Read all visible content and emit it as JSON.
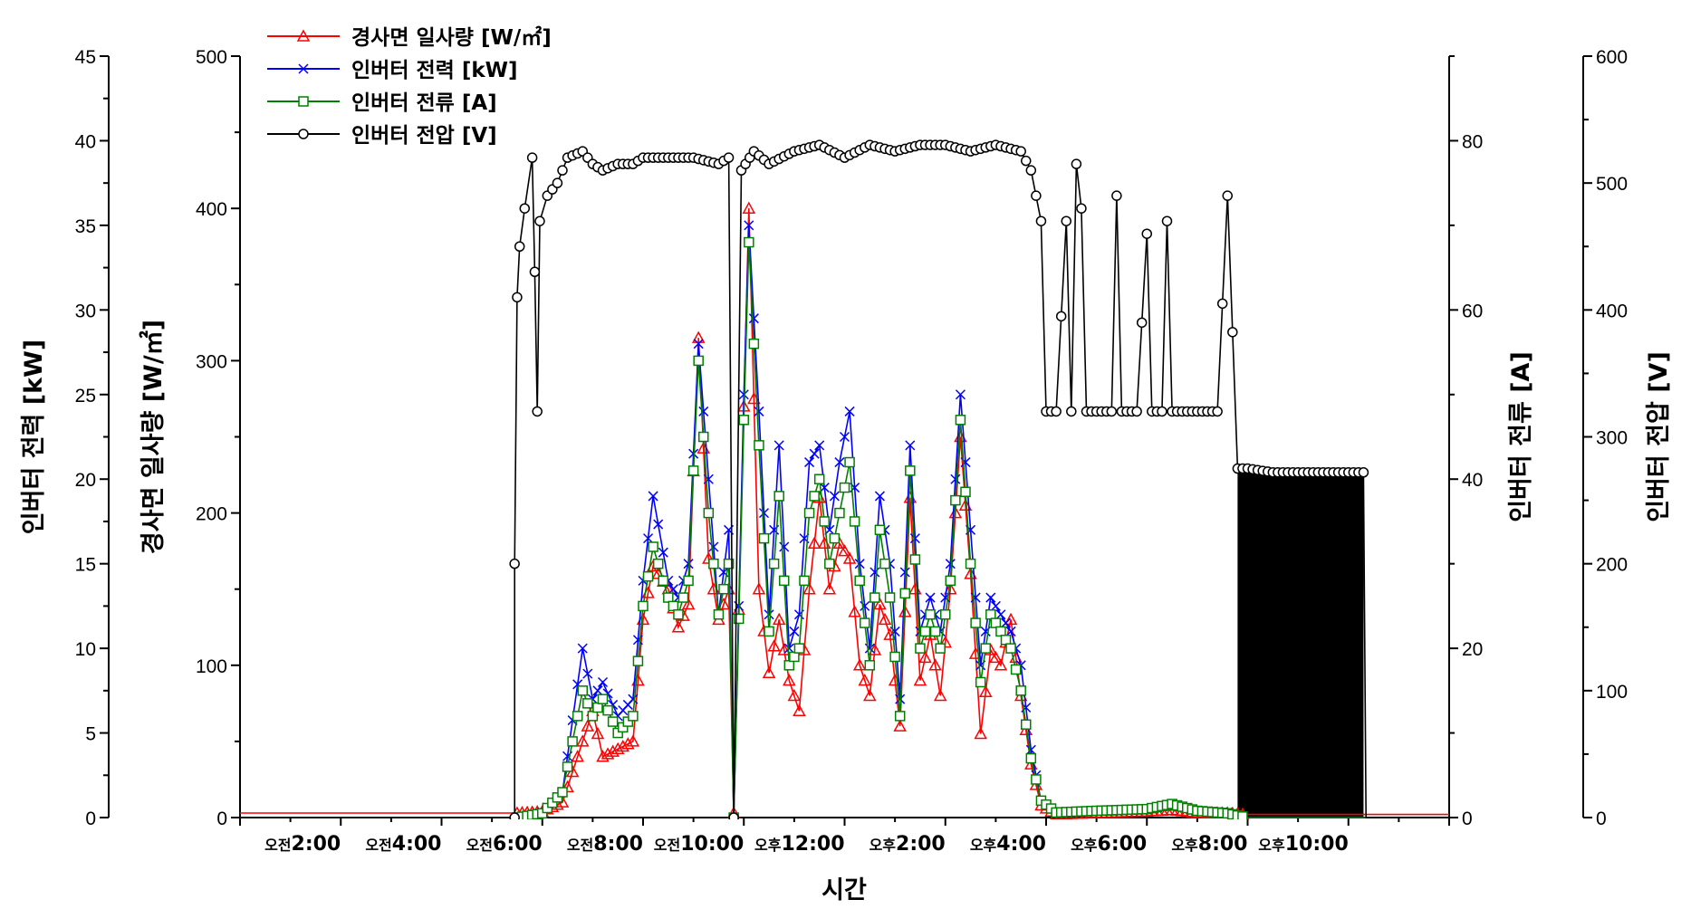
{
  "chart_data": {
    "type": "line",
    "title": "",
    "xlabel": "시간",
    "x_range_hours": [
      0,
      24
    ],
    "x_ticks": [
      {
        "hour": 2,
        "prefix": "오전",
        "time": "2:00"
      },
      {
        "hour": 4,
        "prefix": "오전",
        "time": "4:00"
      },
      {
        "hour": 6,
        "prefix": "오전",
        "time": "6:00"
      },
      {
        "hour": 8,
        "prefix": "오전",
        "time": "8:00"
      },
      {
        "hour": 10,
        "prefix": "오전",
        "time": "10:00"
      },
      {
        "hour": 12,
        "prefix": "오후",
        "time": "12:00"
      },
      {
        "hour": 14,
        "prefix": "오후",
        "time": "2:00"
      },
      {
        "hour": 16,
        "prefix": "오후",
        "time": "4:00"
      },
      {
        "hour": 18,
        "prefix": "오후",
        "time": "6:00"
      },
      {
        "hour": 20,
        "prefix": "오후",
        "time": "8:00"
      },
      {
        "hour": 22,
        "prefix": "오후",
        "time": "10:00"
      }
    ],
    "axes": {
      "power": {
        "label": "인버터 전력 [kW]",
        "range": [
          0,
          45
        ],
        "ticks": [
          0,
          5,
          10,
          15,
          20,
          25,
          30,
          35,
          40,
          45
        ]
      },
      "irradiance": {
        "label": "경사면 일사량 [W/㎡]",
        "range": [
          0,
          500
        ],
        "ticks": [
          0,
          100,
          200,
          300,
          400,
          500
        ]
      },
      "current": {
        "label": "인버터 전류 [A]",
        "range": [
          0,
          90
        ],
        "ticks": [
          0,
          20,
          40,
          60,
          80
        ]
      },
      "voltage": {
        "label": "인버터 전압 [V]",
        "range": [
          0,
          600
        ],
        "ticks": [
          0,
          100,
          200,
          300,
          400,
          500,
          600
        ]
      }
    },
    "legend_position": "top-left",
    "series": [
      {
        "name": "경사면 일사량 [W/㎡]",
        "axis": "irradiance",
        "color": "#ff0000",
        "marker": "triangle",
        "points": [
          [
            0,
            3
          ],
          [
            5.5,
            3
          ],
          [
            6.0,
            4
          ],
          [
            6.4,
            10
          ],
          [
            6.8,
            50
          ],
          [
            7.0,
            70
          ],
          [
            7.2,
            40
          ],
          [
            7.5,
            45
          ],
          [
            7.8,
            50
          ],
          [
            8.0,
            130
          ],
          [
            8.2,
            165
          ],
          [
            8.5,
            150
          ],
          [
            8.7,
            125
          ],
          [
            8.9,
            140
          ],
          [
            9.1,
            315
          ],
          [
            9.3,
            170
          ],
          [
            9.5,
            130
          ],
          [
            9.7,
            150
          ],
          [
            9.8,
            3
          ],
          [
            10.0,
            270
          ],
          [
            10.1,
            400
          ],
          [
            10.3,
            150
          ],
          [
            10.5,
            95
          ],
          [
            10.7,
            130
          ],
          [
            10.9,
            90
          ],
          [
            11.1,
            70
          ],
          [
            11.3,
            150
          ],
          [
            11.5,
            210
          ],
          [
            11.7,
            150
          ],
          [
            11.9,
            180
          ],
          [
            12.1,
            170
          ],
          [
            12.3,
            100
          ],
          [
            12.5,
            80
          ],
          [
            12.7,
            140
          ],
          [
            12.9,
            120
          ],
          [
            13.1,
            60
          ],
          [
            13.3,
            210
          ],
          [
            13.5,
            90
          ],
          [
            13.7,
            120
          ],
          [
            13.9,
            80
          ],
          [
            14.1,
            150
          ],
          [
            14.3,
            250
          ],
          [
            14.5,
            160
          ],
          [
            14.7,
            55
          ],
          [
            14.9,
            110
          ],
          [
            15.1,
            100
          ],
          [
            15.3,
            130
          ],
          [
            15.5,
            80
          ],
          [
            15.7,
            35
          ],
          [
            15.9,
            8
          ],
          [
            16.2,
            2
          ],
          [
            17.0,
            3
          ],
          [
            18.0,
            4
          ],
          [
            18.5,
            5
          ],
          [
            19.0,
            3
          ],
          [
            19.6,
            3
          ],
          [
            20.0,
            2
          ],
          [
            24,
            2
          ]
        ]
      },
      {
        "name": "인버터 전력 [kW]",
        "axis": "power",
        "color": "#0000ff",
        "marker": "x",
        "points": [
          [
            0,
            0
          ],
          [
            5.5,
            0
          ],
          [
            6.0,
            0.3
          ],
          [
            6.4,
            1.5
          ],
          [
            6.8,
            10
          ],
          [
            7.0,
            7
          ],
          [
            7.2,
            8
          ],
          [
            7.5,
            6
          ],
          [
            7.8,
            7
          ],
          [
            8.0,
            14
          ],
          [
            8.2,
            19
          ],
          [
            8.5,
            14
          ],
          [
            8.7,
            13
          ],
          [
            8.9,
            15
          ],
          [
            9.1,
            28
          ],
          [
            9.3,
            20
          ],
          [
            9.5,
            12
          ],
          [
            9.7,
            17
          ],
          [
            9.8,
            0
          ],
          [
            10.0,
            25
          ],
          [
            10.1,
            35
          ],
          [
            10.3,
            24
          ],
          [
            10.5,
            12
          ],
          [
            10.7,
            22
          ],
          [
            10.9,
            10
          ],
          [
            11.1,
            12
          ],
          [
            11.3,
            21
          ],
          [
            11.5,
            22
          ],
          [
            11.7,
            17
          ],
          [
            11.9,
            21
          ],
          [
            12.1,
            24
          ],
          [
            12.3,
            15
          ],
          [
            12.5,
            10
          ],
          [
            12.7,
            19
          ],
          [
            12.9,
            15
          ],
          [
            13.1,
            7
          ],
          [
            13.3,
            22
          ],
          [
            13.5,
            11
          ],
          [
            13.7,
            13
          ],
          [
            13.9,
            11
          ],
          [
            14.1,
            15
          ],
          [
            14.3,
            25
          ],
          [
            14.5,
            17
          ],
          [
            14.7,
            9
          ],
          [
            14.9,
            13
          ],
          [
            15.1,
            12
          ],
          [
            15.3,
            11
          ],
          [
            15.5,
            9
          ],
          [
            15.7,
            4
          ],
          [
            15.9,
            1
          ],
          [
            16.2,
            0.3
          ],
          [
            17.0,
            0.4
          ],
          [
            18.0,
            0.5
          ],
          [
            18.5,
            0.8
          ],
          [
            19.0,
            0.4
          ],
          [
            19.6,
            0.3
          ],
          [
            20.0,
            0
          ],
          [
            24,
            0
          ]
        ]
      },
      {
        "name": "인버터 전류 [A]",
        "axis": "current",
        "color": "#008000",
        "marker": "square",
        "points": [
          [
            0,
            0
          ],
          [
            5.5,
            0
          ],
          [
            6.0,
            0.5
          ],
          [
            6.4,
            3
          ],
          [
            6.8,
            15
          ],
          [
            7.0,
            12
          ],
          [
            7.2,
            14
          ],
          [
            7.5,
            10
          ],
          [
            7.8,
            12
          ],
          [
            8.0,
            25
          ],
          [
            8.2,
            32
          ],
          [
            8.5,
            26
          ],
          [
            8.7,
            24
          ],
          [
            8.9,
            28
          ],
          [
            9.1,
            54
          ],
          [
            9.3,
            36
          ],
          [
            9.5,
            24
          ],
          [
            9.7,
            30
          ],
          [
            9.8,
            0
          ],
          [
            10.0,
            47
          ],
          [
            10.1,
            68
          ],
          [
            10.3,
            44
          ],
          [
            10.5,
            22
          ],
          [
            10.7,
            38
          ],
          [
            10.9,
            18
          ],
          [
            11.1,
            20
          ],
          [
            11.3,
            36
          ],
          [
            11.5,
            40
          ],
          [
            11.7,
            30
          ],
          [
            11.9,
            36
          ],
          [
            12.1,
            42
          ],
          [
            12.3,
            28
          ],
          [
            12.5,
            18
          ],
          [
            12.7,
            34
          ],
          [
            12.9,
            26
          ],
          [
            13.1,
            12
          ],
          [
            13.3,
            41
          ],
          [
            13.5,
            20
          ],
          [
            13.7,
            24
          ],
          [
            13.9,
            20
          ],
          [
            14.1,
            28
          ],
          [
            14.3,
            47
          ],
          [
            14.5,
            30
          ],
          [
            14.7,
            16
          ],
          [
            14.9,
            24
          ],
          [
            15.1,
            22
          ],
          [
            15.3,
            20
          ],
          [
            15.5,
            15
          ],
          [
            15.7,
            7
          ],
          [
            15.9,
            2
          ],
          [
            16.2,
            0.6
          ],
          [
            17.0,
            0.8
          ],
          [
            18.0,
            1.0
          ],
          [
            18.5,
            1.6
          ],
          [
            19.0,
            0.8
          ],
          [
            19.6,
            0.5
          ],
          [
            20.0,
            0
          ],
          [
            24,
            0
          ]
        ]
      },
      {
        "name": "인버터 전압 [V]",
        "axis": "voltage",
        "color": "#000000",
        "marker": "circle",
        "points": [
          [
            0,
            0
          ],
          [
            5.45,
            0
          ],
          [
            5.45,
            200
          ],
          [
            5.5,
            410
          ],
          [
            5.55,
            450
          ],
          [
            5.65,
            480
          ],
          [
            5.8,
            520
          ],
          [
            5.85,
            430
          ],
          [
            5.9,
            320
          ],
          [
            5.95,
            470
          ],
          [
            6.1,
            490
          ],
          [
            6.3,
            500
          ],
          [
            6.5,
            520
          ],
          [
            6.8,
            525
          ],
          [
            7.0,
            515
          ],
          [
            7.2,
            510
          ],
          [
            7.5,
            515
          ],
          [
            7.8,
            515
          ],
          [
            8.0,
            520
          ],
          [
            8.5,
            520
          ],
          [
            9.0,
            520
          ],
          [
            9.5,
            515
          ],
          [
            9.7,
            520
          ],
          [
            9.8,
            0
          ],
          [
            9.95,
            510
          ],
          [
            10.2,
            525
          ],
          [
            10.5,
            515
          ],
          [
            11.0,
            525
          ],
          [
            11.5,
            530
          ],
          [
            12.0,
            520
          ],
          [
            12.5,
            530
          ],
          [
            13.0,
            525
          ],
          [
            13.5,
            530
          ],
          [
            14.0,
            530
          ],
          [
            14.5,
            525
          ],
          [
            15.0,
            530
          ],
          [
            15.5,
            525
          ],
          [
            15.7,
            510
          ],
          [
            15.9,
            470
          ],
          [
            16.0,
            320
          ],
          [
            16.2,
            320
          ],
          [
            16.4,
            470
          ],
          [
            16.5,
            320
          ],
          [
            16.6,
            515
          ],
          [
            16.7,
            480
          ],
          [
            16.8,
            320
          ],
          [
            17.0,
            320
          ],
          [
            17.3,
            320
          ],
          [
            17.4,
            490
          ],
          [
            17.5,
            320
          ],
          [
            17.8,
            320
          ],
          [
            18.0,
            460
          ],
          [
            18.1,
            320
          ],
          [
            18.3,
            320
          ],
          [
            18.4,
            470
          ],
          [
            18.5,
            320
          ],
          [
            18.8,
            320
          ],
          [
            19.0,
            320
          ],
          [
            19.4,
            320
          ],
          [
            19.6,
            490
          ],
          [
            19.8,
            275
          ],
          [
            20.0,
            275
          ],
          [
            20.5,
            272
          ],
          [
            21.0,
            272
          ],
          [
            21.5,
            272
          ],
          [
            22.0,
            272
          ],
          [
            22.3,
            272
          ],
          [
            22.35,
            0
          ],
          [
            24,
            0
          ]
        ]
      }
    ]
  }
}
